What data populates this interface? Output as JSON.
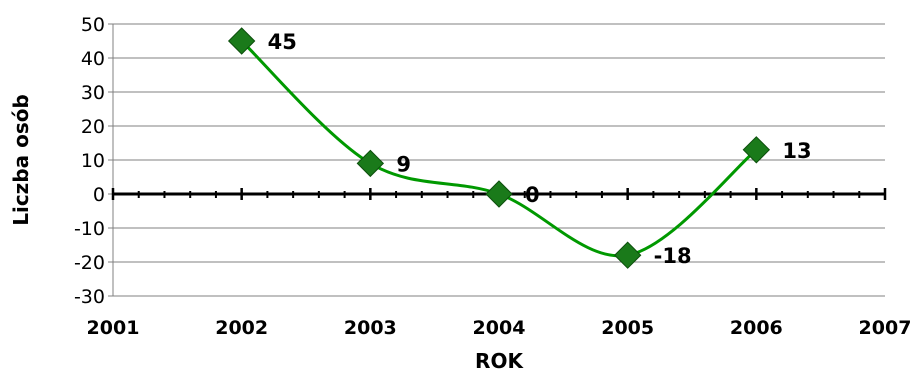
{
  "chart_data": {
    "type": "line",
    "title": "",
    "xlabel": "ROK",
    "ylabel": "Liczba osób",
    "x_ticks": [
      "2001",
      "2002",
      "2003",
      "2004",
      "2005",
      "2006",
      "2007"
    ],
    "xlim": [
      2001,
      2007
    ],
    "y_ticks": [
      "50",
      "40",
      "30",
      "20",
      "10",
      "0",
      "-10",
      "-20",
      "-30"
    ],
    "ylim": [
      -30,
      50
    ],
    "grid": true,
    "smooth": true,
    "series": [
      {
        "color": "#009900",
        "marker_color": "#1a7a1a",
        "marker": "diamond",
        "points": [
          {
            "x": 2002,
            "y": 45,
            "label": "45"
          },
          {
            "x": 2003,
            "y": 9,
            "label": "9"
          },
          {
            "x": 2004,
            "y": 0,
            "label": "0"
          },
          {
            "x": 2005,
            "y": -18,
            "label": "-18"
          },
          {
            "x": 2006,
            "y": 13,
            "label": "13"
          }
        ]
      }
    ]
  }
}
